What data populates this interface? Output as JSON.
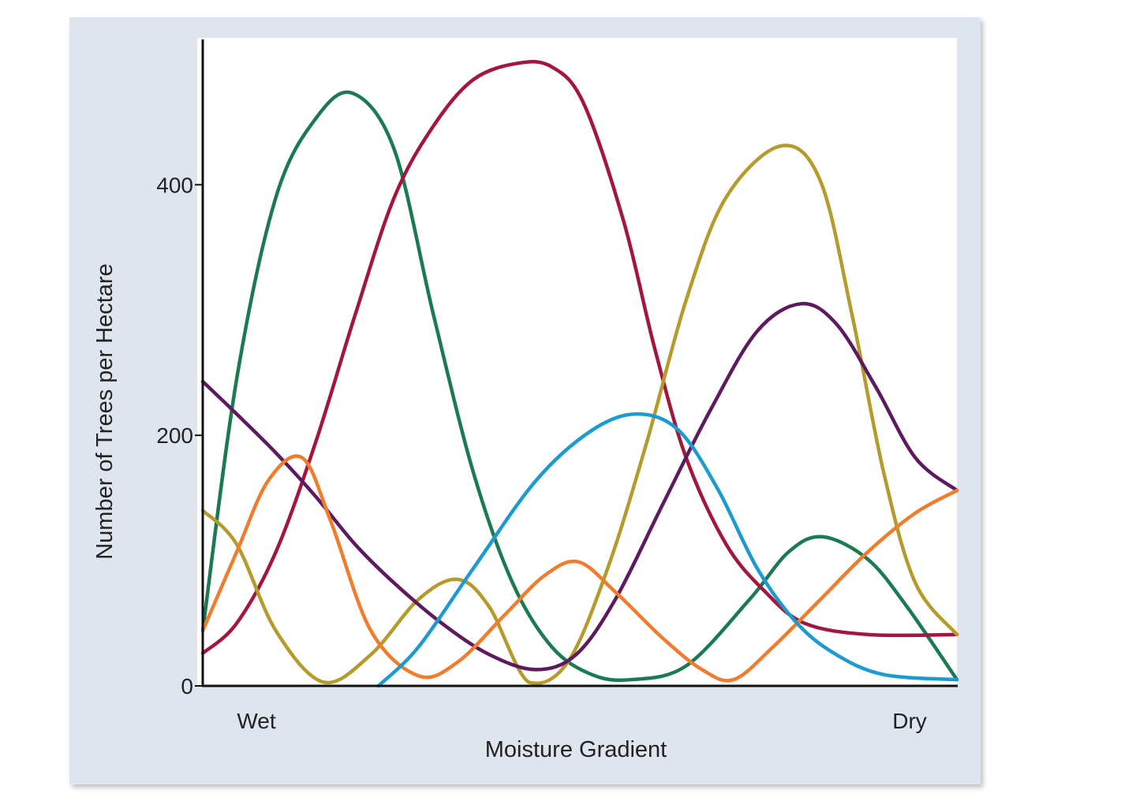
{
  "chart_data": {
    "type": "line",
    "title": "",
    "xlabel": "Moisture Gradient",
    "ylabel": "Number of Trees per Hectare",
    "x_tick_labels": [
      "Wet",
      "Dry"
    ],
    "xlim": [
      0,
      100
    ],
    "ylim": [
      0,
      516
    ],
    "yticks": [
      0,
      200,
      400
    ],
    "grid": false,
    "legend": "none",
    "series": [
      {
        "color": "#1b7a52",
        "x": [
          0,
          4.5,
          9.7,
          15,
          19.9,
          25.4,
          30.6,
          35.9,
          41.1,
          46.3,
          51.6,
          56.8,
          64.1,
          72.5,
          77.7,
          82.2,
          88.2,
          93.4,
          100
        ],
        "y": [
          44,
          245,
          390,
          453,
          473,
          428,
          296,
          170,
          82,
          31,
          9,
          5,
          16,
          69,
          107,
          119,
          101,
          63,
          5
        ]
      },
      {
        "color": "#a3173f",
        "x": [
          0,
          4.5,
          9.7,
          15,
          20.2,
          25.4,
          30.6,
          35.9,
          41.8,
          46.3,
          50.5,
          55.8,
          59.9,
          64.1,
          69.4,
          74.6,
          79.8,
          88.2,
          100
        ],
        "y": [
          26,
          50,
          107,
          195,
          296,
          390,
          447,
          484,
          497,
          494,
          465,
          371,
          270,
          182,
          113,
          75,
          50,
          41,
          41
        ]
      },
      {
        "color": "#b59b2c",
        "x": [
          0,
          4.5,
          9.7,
          16,
          22.3,
          28.6,
          33.8,
          38,
          43.2,
          48.4,
          53.7,
          58.9,
          64.1,
          69.4,
          76.7,
          81.9,
          86.1,
          90.3,
          94.5,
          100
        ],
        "y": [
          140,
          113,
          44,
          3,
          25,
          69,
          85,
          63,
          3,
          19,
          94,
          195,
          308,
          390,
          431,
          403,
          296,
          170,
          82,
          41
        ]
      },
      {
        "color": "#5e1a5e",
        "x": [
          0,
          4.5,
          9.7,
          15,
          20.2,
          25.4,
          31.7,
          38,
          44.2,
          49.5,
          54.7,
          61,
          67.3,
          73.5,
          79.3,
          84,
          89.2,
          94.5,
          100
        ],
        "y": [
          243,
          217,
          186,
          151,
          113,
          82,
          50,
          25,
          13,
          25,
          69,
          145,
          220,
          283,
          305,
          289,
          239,
          182,
          156
        ]
      },
      {
        "color": "#ef7d2d",
        "x": [
          0,
          4.5,
          8.7,
          13.2,
          17,
          22.3,
          28.6,
          33.8,
          40.1,
          45.3,
          49.8,
          54.7,
          61,
          66.2,
          70.4,
          75.6,
          81.9,
          88.2,
          94.5,
          100
        ],
        "y": [
          44,
          107,
          164,
          182,
          131,
          44,
          8,
          19,
          57,
          88,
          99,
          75,
          38,
          13,
          5,
          31,
          69,
          107,
          138,
          156
        ]
      },
      {
        "color": "#1d9ad0",
        "x": [
          23.3,
          28.6,
          35.9,
          44.2,
          51.6,
          57.6,
          63.1,
          68.3,
          73.5,
          78.8,
          84,
          90.3,
          100
        ],
        "y": [
          0,
          31,
          94,
          164,
          204,
          217,
          204,
          157,
          94,
          50,
          25,
          9,
          5
        ]
      }
    ]
  }
}
